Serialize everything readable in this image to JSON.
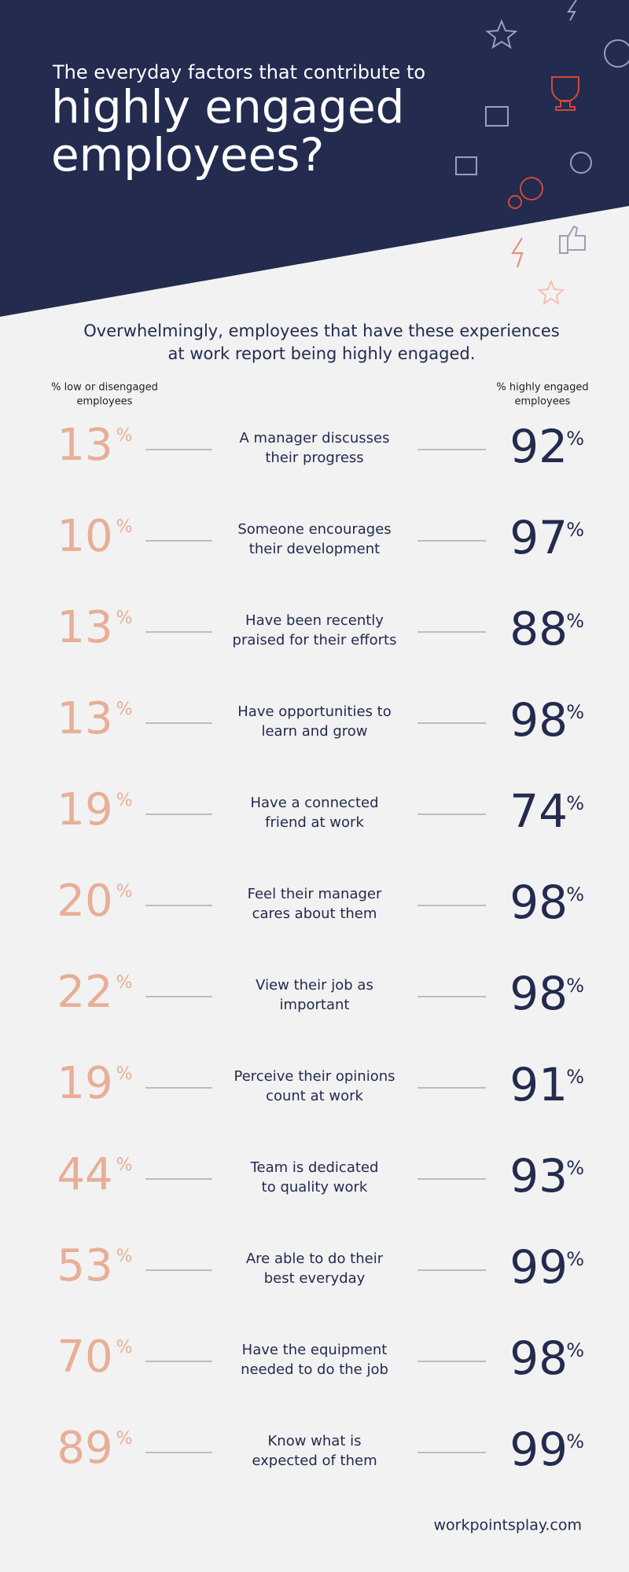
{
  "header": {
    "kicker": "The everyday factors that contribute to",
    "title_lines": [
      "highly engaged",
      "employees?"
    ]
  },
  "intro": [
    "Overwhelmingly, employees that have these experiences",
    "at work report being highly engaged."
  ],
  "columns": {
    "low": [
      "% low or disengaged",
      "employees"
    ],
    "high": [
      "% highly engaged",
      "employees"
    ]
  },
  "unit": "%",
  "rows": [
    {
      "low": 13,
      "label": [
        "A manager discusses",
        "their progress"
      ],
      "high": 92
    },
    {
      "low": 10,
      "label": [
        "Someone encourages",
        "their development"
      ],
      "high": 97
    },
    {
      "low": 13,
      "label": [
        "Have been recently",
        "praised for their efforts"
      ],
      "high": 88
    },
    {
      "low": 13,
      "label": [
        "Have opportunities to",
        "learn and grow"
      ],
      "high": 98
    },
    {
      "low": 19,
      "label": [
        "Have a connected",
        "friend at work"
      ],
      "high": 74
    },
    {
      "low": 20,
      "label": [
        "Feel their manager",
        "cares about them"
      ],
      "high": 98
    },
    {
      "low": 22,
      "label": [
        "View their job as",
        "important"
      ],
      "high": 98
    },
    {
      "low": 19,
      "label": [
        "Perceive their opinions",
        "count at work"
      ],
      "high": 91
    },
    {
      "low": 44,
      "label": [
        "Team is dedicated",
        "to quality work"
      ],
      "high": 93
    },
    {
      "low": 53,
      "label": [
        "Are able to do their",
        "best everyday"
      ],
      "high": 99
    },
    {
      "low": 70,
      "label": [
        "Have the equipment",
        "needed to do the job"
      ],
      "high": 98
    },
    {
      "low": 89,
      "label": [
        "Know what is",
        "expected of them"
      ],
      "high": 99
    }
  ],
  "footer": "workpointsplay.com"
}
